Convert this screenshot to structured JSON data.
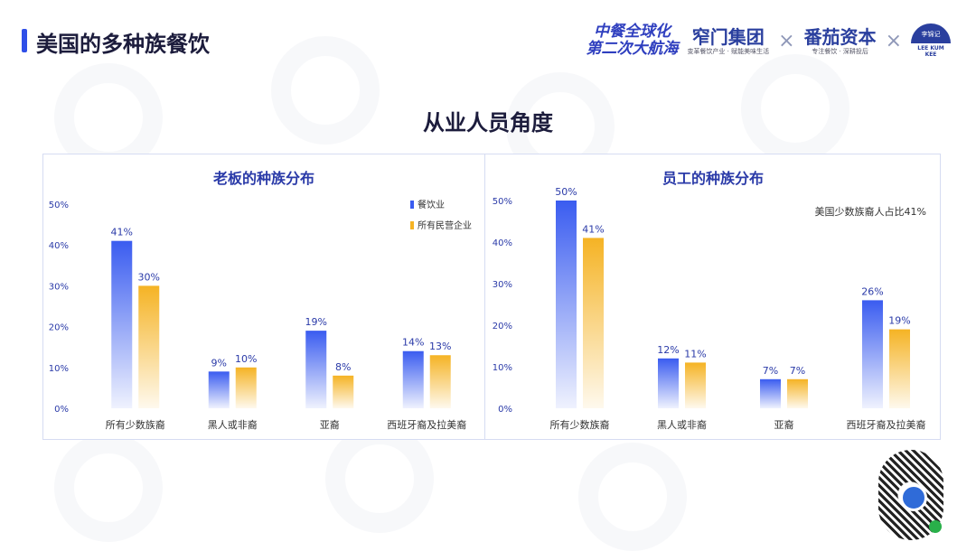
{
  "page": {
    "title": "美国的多种族餐饮",
    "section_title": "从业人员角度"
  },
  "logos": {
    "campaign": [
      "中餐全球化",
      "第二次大航海"
    ],
    "brand1_name": "窄门集团",
    "brand1_tagline": "变革餐饮产业 · 赋能美味生活",
    "brand2_name": "番茄资本",
    "brand2_tagline": "专注餐饮 · 深耕投后",
    "brand3_name": "李锦记",
    "brand3_sub": "LEE KUM KEE",
    "separator": "×"
  },
  "colors": {
    "blue": "#3a5cf0",
    "orange": "#f5b324",
    "accent": "#2f4fe8",
    "label": "#2a3aa8"
  },
  "chart_data": [
    {
      "type": "bar",
      "title": "老板的种族分布",
      "categories": [
        "所有少数族裔",
        "黑人或非裔",
        "亚裔",
        "西班牙裔及拉美裔"
      ],
      "series": [
        {
          "name": "餐饮业",
          "values": [
            41,
            9,
            19,
            14
          ]
        },
        {
          "name": "所有民营企业",
          "values": [
            30,
            10,
            8,
            13
          ]
        }
      ],
      "ylim": [
        0,
        50
      ],
      "yticks": [
        "0%",
        "10%",
        "20%",
        "30%",
        "40%",
        "50%"
      ],
      "value_labels": [
        [
          "41%",
          "9%",
          "19%",
          "14%"
        ],
        [
          "30%",
          "10%",
          "8%",
          "13%"
        ]
      ],
      "legend": "top-right",
      "grid": false
    },
    {
      "type": "bar",
      "title": "员工的种族分布",
      "categories": [
        "所有少数族裔",
        "黑人或非裔",
        "亚裔",
        "西班牙裔及拉美裔"
      ],
      "series": [
        {
          "name": "餐饮业",
          "values": [
            50,
            12,
            7,
            26
          ]
        },
        {
          "name": "所有民营企业",
          "values": [
            41,
            11,
            7,
            19
          ]
        }
      ],
      "ylim": [
        0,
        50
      ],
      "yticks": [
        "0%",
        "10%",
        "20%",
        "30%",
        "40%",
        "50%"
      ],
      "value_labels": [
        [
          "50%",
          "12%",
          "7%",
          "26%"
        ],
        [
          "41%",
          "11%",
          "7%",
          "19%"
        ]
      ],
      "annotation": "美国少数族裔人占比41%",
      "grid": false
    }
  ]
}
